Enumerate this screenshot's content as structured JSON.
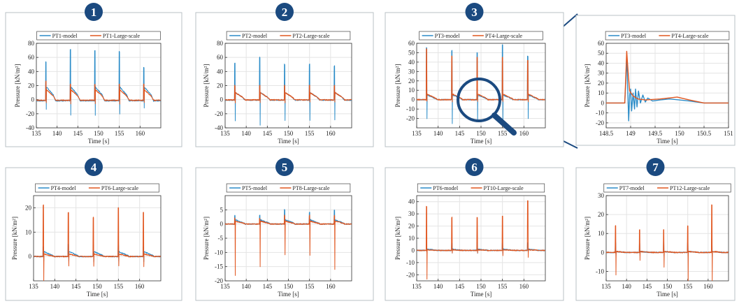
{
  "colors": {
    "model": "#2b8cc8",
    "large": "#e1561f",
    "badge": "#1b4a80",
    "frame": "#b8c0c6",
    "grid": "#e4e4e4",
    "magnifier": "#1b4a80"
  },
  "chart_data": [
    {
      "type": "line",
      "badge": "1",
      "xlabel": "Time [s]",
      "ylabel": "Pressure [kN/m²]",
      "xlim": [
        135,
        165
      ],
      "ylim": [
        -40,
        80
      ],
      "xticks": [
        135,
        140,
        145,
        150,
        155,
        160
      ],
      "yticks": [
        -40,
        -20,
        0,
        20,
        40,
        60,
        80
      ],
      "grid": true,
      "legend_position": "top-center",
      "series": [
        {
          "name": "PT1-model",
          "color_key": "model",
          "spike_times": [
            137.3,
            143.2,
            149.1,
            155.0,
            160.9
          ],
          "spike_peaks": [
            54,
            71,
            70,
            68,
            46
          ],
          "spike_dips": [
            -14,
            -22,
            -22,
            -20,
            -12
          ],
          "plateau": 18,
          "tail": -5
        },
        {
          "name": "PT1-Large-scale",
          "color_key": "large",
          "spike_times": [
            137.3,
            143.2,
            149.1,
            155.0,
            160.9
          ],
          "spike_peaks": [
            26,
            22,
            22,
            22,
            22
          ],
          "spike_dips": [
            -4,
            -6,
            -6,
            -6,
            -4
          ],
          "plateau": 14,
          "tail": -3
        }
      ]
    },
    {
      "type": "line",
      "badge": "2",
      "xlabel": "Time [s]",
      "ylabel": "Pressure [kN/m²]",
      "xlim": [
        135,
        165
      ],
      "ylim": [
        -40,
        80
      ],
      "xticks": [
        135,
        140,
        145,
        150,
        155,
        160
      ],
      "yticks": [
        -40,
        -20,
        0,
        20,
        40,
        60,
        80
      ],
      "grid": true,
      "legend_position": "top-center",
      "series": [
        {
          "name": "PT2-model",
          "color_key": "model",
          "spike_times": [
            137.3,
            143.2,
            149.1,
            155.0,
            160.9
          ],
          "spike_peaks": [
            52,
            60,
            50,
            50,
            48
          ],
          "spike_dips": [
            -30,
            -36,
            -30,
            -30,
            -28
          ],
          "plateau": 10,
          "tail": -2
        },
        {
          "name": "PT2-Large-scale",
          "color_key": "large",
          "spike_times": [
            137.3,
            143.2,
            149.1,
            155.0,
            160.9
          ],
          "spike_peaks": [
            20,
            20,
            20,
            20,
            20
          ],
          "spike_dips": [
            -4,
            -4,
            -4,
            -4,
            -4
          ],
          "plateau": 10,
          "tail": -1
        }
      ]
    },
    {
      "type": "line",
      "badge": "3",
      "xlabel": "Time [s]",
      "ylabel": "Pressure [kN/m²]",
      "xlim": [
        135,
        165
      ],
      "ylim": [
        -30,
        60
      ],
      "xticks": [
        135,
        140,
        145,
        150,
        155,
        160
      ],
      "yticks": [
        -20,
        -10,
        0,
        10,
        20,
        30,
        40,
        50,
        60
      ],
      "grid": true,
      "legend_position": "top-center",
      "series": [
        {
          "name": "PT3-model",
          "color_key": "model",
          "spike_times": [
            137.3,
            143.2,
            149.1,
            155.0,
            160.9
          ],
          "spike_peaks": [
            55,
            52,
            50,
            58,
            46
          ],
          "spike_dips": [
            -20,
            -25,
            -22,
            -22,
            -20
          ],
          "plateau": 5,
          "tail": 0
        },
        {
          "name": "PT4-Large-scale",
          "color_key": "large",
          "spike_times": [
            137.3,
            143.2,
            149.1,
            155.0,
            160.9
          ],
          "spike_peaks": [
            54,
            46,
            45,
            45,
            42
          ],
          "spike_dips": [
            -2,
            -2,
            -2,
            -2,
            -2
          ],
          "plateau": 6,
          "tail": 0
        }
      ]
    },
    {
      "type": "line",
      "badge": "",
      "xlabel": "Time [s]",
      "ylabel": "Pressure [kN/m²]",
      "xlim": [
        148.5,
        151
      ],
      "ylim": [
        -25,
        60
      ],
      "xticks": [
        148.5,
        149,
        149.5,
        150,
        150.5,
        151
      ],
      "yticks": [
        -20,
        -10,
        0,
        10,
        20,
        30,
        40,
        50,
        60
      ],
      "grid": true,
      "legend_position": "top-center",
      "zoom_series": [
        {
          "name": "PT3-model",
          "color_key": "model",
          "points": [
            [
              148.5,
              0
            ],
            [
              148.88,
              0
            ],
            [
              148.9,
              20
            ],
            [
              148.92,
              48
            ],
            [
              148.94,
              15
            ],
            [
              148.96,
              -18
            ],
            [
              148.98,
              8
            ],
            [
              149.0,
              14
            ],
            [
              149.02,
              -8
            ],
            [
              149.05,
              10
            ],
            [
              149.08,
              -6
            ],
            [
              149.1,
              14
            ],
            [
              149.13,
              -4
            ],
            [
              149.16,
              12
            ],
            [
              149.2,
              0
            ],
            [
              149.25,
              8
            ],
            [
              149.3,
              1
            ],
            [
              149.35,
              5
            ],
            [
              149.45,
              2
            ],
            [
              149.6,
              3
            ],
            [
              149.8,
              4
            ],
            [
              150.0,
              3
            ],
            [
              150.2,
              2
            ],
            [
              150.5,
              0
            ],
            [
              151,
              0
            ]
          ]
        },
        {
          "name": "PT4-Large-scale",
          "color_key": "large",
          "points": [
            [
              148.5,
              0
            ],
            [
              148.88,
              0
            ],
            [
              148.9,
              25
            ],
            [
              148.92,
              52
            ],
            [
              148.95,
              30
            ],
            [
              148.98,
              12
            ],
            [
              149.05,
              7
            ],
            [
              149.15,
              4
            ],
            [
              149.3,
              3
            ],
            [
              149.6,
              4
            ],
            [
              149.95,
              6
            ],
            [
              150.2,
              3
            ],
            [
              150.5,
              0
            ],
            [
              151,
              0
            ]
          ]
        }
      ]
    },
    {
      "type": "line",
      "badge": "4",
      "xlabel": "Time [s]",
      "ylabel": "Pressure [kN/m²]",
      "xlim": [
        135,
        165
      ],
      "ylim": [
        -10,
        25
      ],
      "xticks": [
        135,
        140,
        145,
        150,
        155,
        160
      ],
      "yticks": [
        0,
        10,
        20
      ],
      "grid": true,
      "legend_position": "top-center",
      "series": [
        {
          "name": "PT4-model",
          "color_key": "model",
          "spike_times": [
            137.3,
            143.2,
            149.1,
            155.0,
            160.9
          ],
          "spike_peaks": [
            4,
            5,
            5,
            5,
            4
          ],
          "spike_dips": [
            -2,
            -2,
            -2,
            -2,
            -2
          ],
          "plateau": 2,
          "tail": 0
        },
        {
          "name": "PT6-Large-scale",
          "color_key": "large",
          "spike_times": [
            137.3,
            143.2,
            149.1,
            155.0,
            160.9
          ],
          "spike_peaks": [
            21,
            18,
            16,
            20,
            18
          ],
          "spike_dips": [
            -10,
            -4,
            -4,
            -4,
            -4
          ],
          "plateau": 1,
          "tail": 0
        }
      ]
    },
    {
      "type": "line",
      "badge": "5",
      "xlabel": "Time [s]",
      "ylabel": "Pressure [kN/m²]",
      "xlim": [
        135,
        165
      ],
      "ylim": [
        -20,
        10
      ],
      "xticks": [
        135,
        140,
        145,
        150,
        155,
        160
      ],
      "yticks": [
        -20,
        -15,
        -10,
        -5,
        0,
        5
      ],
      "grid": true,
      "legend_position": "top-center",
      "series": [
        {
          "name": "PT5-model",
          "color_key": "model",
          "spike_times": [
            137.3,
            143.2,
            149.1,
            155.0,
            160.9
          ],
          "spike_peaks": [
            3,
            3,
            5,
            4,
            5
          ],
          "spike_dips": [
            -1,
            -1,
            -1,
            -1,
            -1
          ],
          "plateau": 1.5,
          "tail": 0
        },
        {
          "name": "PT8-Large-scale",
          "color_key": "large",
          "spike_times": [
            137.3,
            143.2,
            149.1,
            155.0,
            160.9
          ],
          "spike_peaks": [
            2,
            2,
            3,
            3,
            3
          ],
          "spike_dips": [
            -18,
            -15,
            -11,
            -11,
            -16
          ],
          "plateau": 1,
          "tail": 0
        }
      ]
    },
    {
      "type": "line",
      "badge": "6",
      "xlabel": "Time [s]",
      "ylabel": "Pressure [kN/m²]",
      "xlim": [
        135,
        165
      ],
      "ylim": [
        -25,
        45
      ],
      "xticks": [
        135,
        140,
        145,
        150,
        155,
        160
      ],
      "yticks": [
        -20,
        -10,
        0,
        10,
        20,
        30,
        40
      ],
      "grid": true,
      "legend_position": "top-center",
      "series": [
        {
          "name": "PT6-model",
          "color_key": "model",
          "spike_times": [
            137.3,
            143.2,
            149.1,
            155.0,
            160.9
          ],
          "spike_peaks": [
            5,
            6,
            7,
            6,
            6
          ],
          "spike_dips": [
            -2,
            -2,
            -2,
            -2,
            -2
          ],
          "plateau": 1,
          "tail": 0
        },
        {
          "name": "PT10-Large-scale",
          "color_key": "large",
          "spike_times": [
            137.3,
            143.2,
            149.1,
            155.0,
            160.9
          ],
          "spike_peaks": [
            36,
            27,
            27,
            28,
            41
          ],
          "spike_dips": [
            -24,
            -2,
            -2,
            -4,
            -6
          ],
          "plateau": 0.5,
          "tail": 0
        }
      ]
    },
    {
      "type": "line",
      "badge": "7",
      "xlabel": "Time [s]",
      "ylabel": "Pressure [kN/m²]",
      "xlim": [
        135,
        165
      ],
      "ylim": [
        -15,
        30
      ],
      "xticks": [
        135,
        140,
        145,
        150,
        155,
        160
      ],
      "yticks": [
        -10,
        0,
        10,
        20,
        30
      ],
      "grid": true,
      "legend_position": "top-center",
      "series": [
        {
          "name": "PT7-model",
          "color_key": "model",
          "spike_times": [
            137.3,
            143.2,
            149.1,
            155.0,
            160.9
          ],
          "spike_peaks": [
            5,
            5,
            6,
            5,
            7
          ],
          "spike_dips": [
            -2,
            -2,
            -2,
            -2,
            -2
          ],
          "plateau": 0.5,
          "tail": 0
        },
        {
          "name": "PT12-Large-scale",
          "color_key": "large",
          "spike_times": [
            137.3,
            143.2,
            149.1,
            155.0,
            160.9
          ],
          "spike_peaks": [
            14,
            12,
            12,
            14,
            25
          ],
          "spike_dips": [
            -12,
            -4,
            -8,
            -15,
            -15
          ],
          "plateau": 0.5,
          "tail": 0
        }
      ]
    }
  ]
}
